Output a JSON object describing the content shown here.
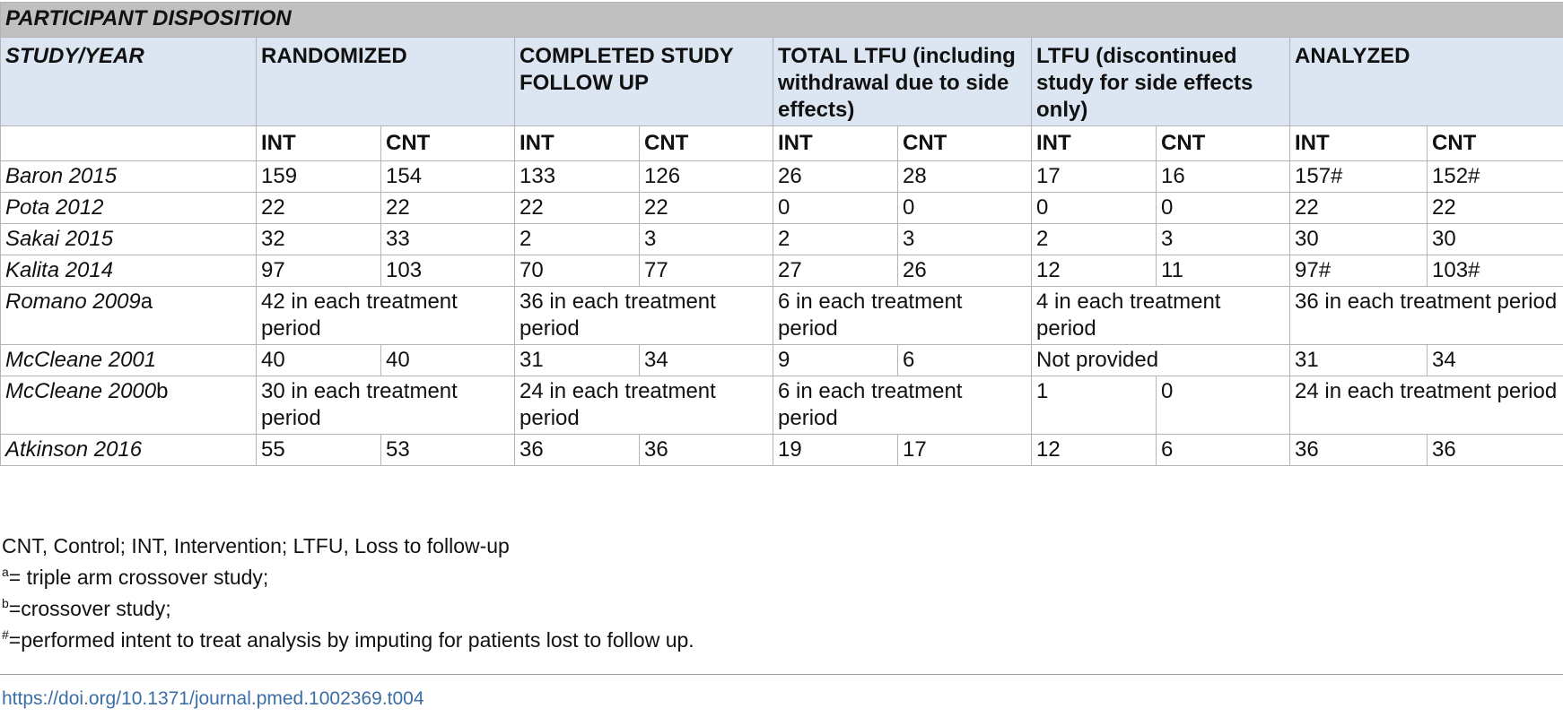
{
  "title": "PARTICIPANT DISPOSITION",
  "headers": {
    "study": "STUDY/YEAR",
    "randomized": "RANDOMIZED",
    "completed": "COMPLETED STUDY FOLLOW UP",
    "total_ltfu": "TOTAL LTFU (including withdrawal due to side effects)",
    "ltfu_side": "LTFU (discontinued study for side effects only)",
    "analyzed": "ANALYZED"
  },
  "sub": {
    "int": "INT",
    "cnt": "CNT"
  },
  "rows": [
    {
      "study": "Baron 2015",
      "sfx": "",
      "c": [
        "159",
        "154",
        "133",
        "126",
        "26",
        "28",
        "17",
        "16",
        "157#",
        "152#"
      ]
    },
    {
      "study": "Pota 2012",
      "sfx": "",
      "c": [
        "22",
        "22",
        "22",
        "22",
        "0",
        "0",
        "0",
        "0",
        "22",
        "22"
      ]
    },
    {
      "study": "Sakai 2015",
      "sfx": "",
      "c": [
        "32",
        "33",
        "2",
        "3",
        "2",
        "3",
        "2",
        "3",
        "30",
        "30"
      ]
    },
    {
      "study": "Kalita 2014",
      "sfx": "",
      "c": [
        "97",
        "103",
        "70",
        "77",
        "27",
        "26",
        "12",
        "11",
        "97#",
        "103#"
      ]
    },
    {
      "study": "Romano 2009",
      "sfx": "a",
      "m": [
        "42 in each treatment period",
        "36 in each treatment period",
        "6 in each treatment period",
        "4 in each treatment period",
        "36 in each treatment period"
      ]
    },
    {
      "study": "McCleane 2001",
      "sfx": "",
      "c": [
        "40",
        "40",
        "31",
        "34",
        "9",
        "6"
      ],
      "ltfu_side": "Not provided",
      "an": [
        "31",
        "34"
      ]
    },
    {
      "study": "McCleane 2000",
      "sfx": "b",
      "m": [
        "30 in each treatment period",
        "24 in each treatment period",
        "6 in each treatment period"
      ],
      "ltfu": [
        "1",
        "0"
      ],
      "an": "24 in each treatment period"
    },
    {
      "study": "Atkinson 2016",
      "sfx": "",
      "c": [
        "55",
        "53",
        "36",
        "36",
        "19",
        "17",
        "12",
        "6",
        "36",
        "36"
      ]
    }
  ],
  "notes": {
    "abbrev": "CNT, Control; INT, Intervention; LTFU, Loss to follow-up",
    "a_mark": "a",
    "a_text": "= triple arm crossover study;",
    "b_mark": "b",
    "b_text": "=crossover study;",
    "h_mark": "#",
    "h_text": "=performed intent to treat analysis by imputing for patients lost to follow up."
  },
  "doi": "https://doi.org/10.1371/journal.pmed.1002369.t004"
}
